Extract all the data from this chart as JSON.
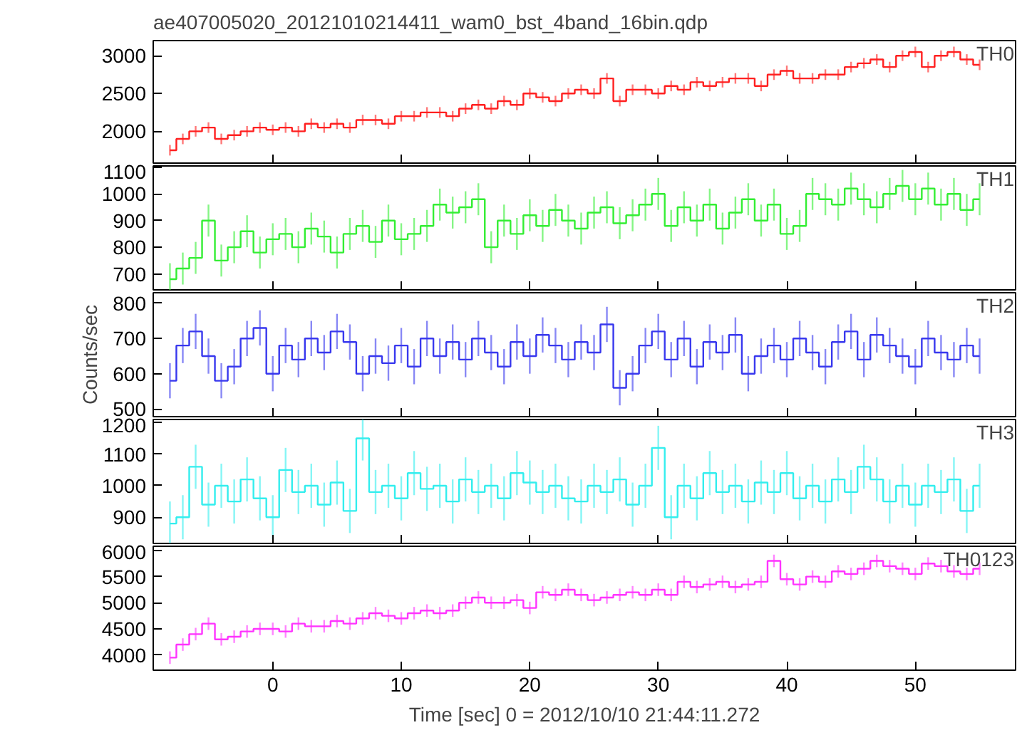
{
  "chart_data": [
    {
      "type": "step",
      "title": "ae407005020_20121010214411_wam0_bst_4band_16bin.qdp",
      "xlim": [
        -9.3,
        57.8
      ],
      "xticks": [
        0,
        10,
        20,
        30,
        40,
        50
      ],
      "ylim": [
        1580,
        3200
      ],
      "yticks": [
        2000,
        2500,
        3000
      ],
      "tick_labels": "y",
      "grid": false,
      "legend": false,
      "x": [
        -8,
        -7,
        -6,
        -5,
        -4,
        -3,
        -2,
        -1,
        0,
        1,
        2,
        3,
        4,
        5,
        6,
        7,
        8,
        9,
        10,
        11,
        12,
        13,
        14,
        15,
        16,
        17,
        18,
        19,
        20,
        21,
        22,
        23,
        24,
        25,
        26,
        27,
        28,
        29,
        30,
        31,
        32,
        33,
        34,
        35,
        36,
        37,
        38,
        39,
        40,
        41,
        42,
        43,
        44,
        45,
        46,
        47,
        48,
        49,
        50,
        51,
        52,
        53,
        54,
        55
      ],
      "series": [
        {
          "name": "TH0",
          "color": "#ff2020",
          "values": [
            1750,
            1900,
            2000,
            2050,
            1900,
            1950,
            2000,
            2050,
            2020,
            2050,
            2000,
            2100,
            2050,
            2100,
            2050,
            2150,
            2150,
            2100,
            2200,
            2200,
            2250,
            2250,
            2200,
            2300,
            2350,
            2300,
            2400,
            2350,
            2500,
            2450,
            2400,
            2500,
            2550,
            2500,
            2700,
            2400,
            2550,
            2550,
            2500,
            2600,
            2550,
            2650,
            2600,
            2650,
            2700,
            2700,
            2600,
            2750,
            2800,
            2700,
            2700,
            2750,
            2750,
            2850,
            2900,
            2950,
            2850,
            3000,
            3050,
            2850,
            3000,
            3050,
            2950,
            2880
          ],
          "errors": [
            70,
            70,
            70,
            70,
            70,
            70,
            70,
            70,
            70,
            70,
            70,
            70,
            70,
            70,
            70,
            70,
            70,
            70,
            70,
            70,
            70,
            70,
            70,
            70,
            70,
            70,
            70,
            70,
            70,
            70,
            70,
            70,
            70,
            70,
            70,
            70,
            70,
            70,
            70,
            70,
            70,
            70,
            70,
            70,
            70,
            70,
            70,
            70,
            70,
            70,
            70,
            70,
            70,
            70,
            70,
            70,
            70,
            70,
            70,
            70,
            70,
            70,
            70,
            70
          ]
        }
      ]
    },
    {
      "type": "step",
      "xlim": [
        -9.3,
        57.8
      ],
      "xticks": [
        0,
        10,
        20,
        30,
        40,
        50
      ],
      "ylim": [
        640,
        1105
      ],
      "yticks": [
        700,
        800,
        900,
        1000,
        1100
      ],
      "tick_labels": "y",
      "grid": false,
      "legend": false,
      "x": [
        -8,
        -7,
        -6,
        -5,
        -4,
        -3,
        -2,
        -1,
        0,
        1,
        2,
        3,
        4,
        5,
        6,
        7,
        8,
        9,
        10,
        11,
        12,
        13,
        14,
        15,
        16,
        17,
        18,
        19,
        20,
        21,
        22,
        23,
        24,
        25,
        26,
        27,
        28,
        29,
        30,
        31,
        32,
        33,
        34,
        35,
        36,
        37,
        38,
        39,
        40,
        41,
        42,
        43,
        44,
        45,
        46,
        47,
        48,
        49,
        50,
        51,
        52,
        53,
        54,
        55
      ],
      "series": [
        {
          "name": "TH1",
          "color": "#33ee33",
          "values": [
            680,
            720,
            760,
            900,
            750,
            800,
            860,
            780,
            830,
            850,
            800,
            870,
            840,
            780,
            850,
            880,
            820,
            900,
            830,
            850,
            880,
            960,
            930,
            950,
            980,
            800,
            900,
            850,
            920,
            880,
            940,
            900,
            870,
            930,
            950,
            890,
            920,
            960,
            1000,
            880,
            950,
            900,
            960,
            870,
            930,
            980,
            900,
            960,
            850,
            880,
            1000,
            980,
            960,
            1020,
            980,
            950,
            1000,
            1030,
            980,
            1020,
            960,
            1000,
            940,
            980
          ],
          "errors": [
            60,
            60,
            60,
            60,
            60,
            60,
            60,
            60,
            60,
            60,
            60,
            60,
            60,
            60,
            60,
            60,
            60,
            60,
            60,
            60,
            60,
            60,
            60,
            60,
            60,
            60,
            60,
            60,
            60,
            60,
            60,
            60,
            60,
            60,
            60,
            60,
            60,
            60,
            60,
            60,
            60,
            60,
            60,
            60,
            60,
            60,
            60,
            60,
            60,
            60,
            60,
            60,
            60,
            60,
            60,
            60,
            60,
            60,
            60,
            60,
            60,
            60,
            60,
            60
          ]
        }
      ]
    },
    {
      "type": "step",
      "ylabel": "Counts/sec",
      "xlim": [
        -9.3,
        57.8
      ],
      "xticks": [
        0,
        10,
        20,
        30,
        40,
        50
      ],
      "ylim": [
        478,
        830
      ],
      "yticks": [
        500,
        600,
        700,
        800
      ],
      "tick_labels": "y",
      "grid": false,
      "legend": false,
      "x": [
        -8,
        -7,
        -6,
        -5,
        -4,
        -3,
        -2,
        -1,
        0,
        1,
        2,
        3,
        4,
        5,
        6,
        7,
        8,
        9,
        10,
        11,
        12,
        13,
        14,
        15,
        16,
        17,
        18,
        19,
        20,
        21,
        22,
        23,
        24,
        25,
        26,
        27,
        28,
        29,
        30,
        31,
        32,
        33,
        34,
        35,
        36,
        37,
        38,
        39,
        40,
        41,
        42,
        43,
        44,
        45,
        46,
        47,
        48,
        49,
        50,
        51,
        52,
        53,
        54,
        55
      ],
      "series": [
        {
          "name": "TH2",
          "color": "#3838ee",
          "values": [
            580,
            680,
            720,
            650,
            580,
            620,
            700,
            730,
            600,
            680,
            640,
            700,
            660,
            720,
            690,
            600,
            650,
            630,
            680,
            620,
            700,
            650,
            690,
            640,
            700,
            660,
            620,
            690,
            650,
            710,
            680,
            640,
            690,
            660,
            740,
            560,
            600,
            680,
            720,
            640,
            700,
            620,
            690,
            660,
            710,
            600,
            650,
            680,
            640,
            700,
            660,
            620,
            690,
            720,
            640,
            710,
            680,
            650,
            620,
            700,
            660,
            640,
            680,
            650
          ],
          "errors": [
            50,
            50,
            50,
            50,
            50,
            50,
            50,
            50,
            50,
            50,
            50,
            50,
            50,
            50,
            50,
            50,
            50,
            50,
            50,
            50,
            50,
            50,
            50,
            50,
            50,
            50,
            50,
            50,
            50,
            50,
            50,
            50,
            50,
            50,
            50,
            50,
            50,
            50,
            50,
            50,
            50,
            50,
            50,
            50,
            50,
            50,
            50,
            50,
            50,
            50,
            50,
            50,
            50,
            50,
            50,
            50,
            50,
            50,
            50,
            50,
            50,
            50,
            50,
            50
          ]
        }
      ]
    },
    {
      "type": "step",
      "xlim": [
        -9.3,
        57.8
      ],
      "xticks": [
        0,
        10,
        20,
        30,
        40,
        50
      ],
      "ylim": [
        817,
        1210
      ],
      "yticks": [
        900,
        1000,
        1100,
        1200
      ],
      "tick_labels": "y",
      "grid": false,
      "legend": false,
      "x": [
        -8,
        -7,
        -6,
        -5,
        -4,
        -3,
        -2,
        -1,
        0,
        1,
        2,
        3,
        4,
        5,
        6,
        7,
        8,
        9,
        10,
        11,
        12,
        13,
        14,
        15,
        16,
        17,
        18,
        19,
        20,
        21,
        22,
        23,
        24,
        25,
        26,
        27,
        28,
        29,
        30,
        31,
        32,
        33,
        34,
        35,
        36,
        37,
        38,
        39,
        40,
        41,
        42,
        43,
        44,
        45,
        46,
        47,
        48,
        49,
        50,
        51,
        52,
        53,
        54,
        55
      ],
      "series": [
        {
          "name": "TH3",
          "color": "#33eeee",
          "values": [
            880,
            900,
            1060,
            940,
            1000,
            950,
            1020,
            960,
            900,
            1050,
            980,
            1000,
            940,
            1010,
            920,
            1150,
            980,
            1000,
            960,
            1040,
            990,
            1000,
            950,
            1020,
            980,
            1000,
            960,
            1040,
            1010,
            980,
            1000,
            960,
            950,
            1000,
            980,
            1020,
            940,
            1000,
            1120,
            900,
            1000,
            960,
            1040,
            980,
            1000,
            950,
            1010,
            980,
            1040,
            960,
            1000,
            950,
            1020,
            980,
            1060,
            1020,
            950,
            1000,
            940,
            1000,
            980,
            1020,
            920,
            1000
          ],
          "errors": [
            70,
            70,
            70,
            70,
            70,
            70,
            70,
            70,
            70,
            70,
            70,
            70,
            70,
            70,
            70,
            70,
            70,
            70,
            70,
            70,
            70,
            70,
            70,
            70,
            70,
            70,
            70,
            70,
            70,
            70,
            70,
            70,
            70,
            70,
            70,
            70,
            70,
            70,
            70,
            70,
            70,
            70,
            70,
            70,
            70,
            70,
            70,
            70,
            70,
            70,
            70,
            70,
            70,
            70,
            70,
            70,
            70,
            70,
            70,
            70,
            70,
            70,
            70,
            70
          ]
        }
      ]
    },
    {
      "type": "step",
      "xlabel": "Time [sec] 0 = 2012/10/10 21:44:11.272",
      "xlim": [
        -9.3,
        57.8
      ],
      "xticks": [
        0,
        10,
        20,
        30,
        40,
        50
      ],
      "ylim": [
        3710,
        6080
      ],
      "yticks": [
        4000,
        4500,
        5000,
        5500,
        6000
      ],
      "grid": false,
      "legend": false,
      "x": [
        -8,
        -7,
        -6,
        -5,
        -4,
        -3,
        -2,
        -1,
        0,
        1,
        2,
        3,
        4,
        5,
        6,
        7,
        8,
        9,
        10,
        11,
        12,
        13,
        14,
        15,
        16,
        17,
        18,
        19,
        20,
        21,
        22,
        23,
        24,
        25,
        26,
        27,
        28,
        29,
        30,
        31,
        32,
        33,
        34,
        35,
        36,
        37,
        38,
        39,
        40,
        41,
        42,
        43,
        44,
        45,
        46,
        47,
        48,
        49,
        50,
        51,
        52,
        53,
        54,
        55
      ],
      "series": [
        {
          "name": "TH0123",
          "color": "#ff33ff",
          "values": [
            3950,
            4200,
            4400,
            4600,
            4300,
            4350,
            4450,
            4500,
            4500,
            4450,
            4600,
            4550,
            4550,
            4650,
            4600,
            4700,
            4800,
            4750,
            4700,
            4800,
            4850,
            4800,
            4850,
            5000,
            5100,
            5000,
            5000,
            5050,
            4900,
            5200,
            5150,
            5250,
            5150,
            5050,
            5100,
            5150,
            5200,
            5150,
            5250,
            5150,
            5400,
            5300,
            5350,
            5400,
            5300,
            5350,
            5400,
            5800,
            5450,
            5350,
            5500,
            5400,
            5600,
            5550,
            5650,
            5800,
            5700,
            5650,
            5550,
            5750,
            5700,
            5600,
            5550,
            5650
          ],
          "errors": [
            120,
            120,
            120,
            120,
            120,
            120,
            120,
            120,
            120,
            120,
            120,
            120,
            120,
            120,
            120,
            120,
            120,
            120,
            120,
            120,
            120,
            120,
            120,
            120,
            120,
            120,
            120,
            120,
            120,
            120,
            120,
            120,
            120,
            120,
            120,
            120,
            120,
            120,
            120,
            120,
            120,
            120,
            120,
            120,
            120,
            120,
            120,
            120,
            120,
            120,
            120,
            120,
            120,
            120,
            120,
            120,
            120,
            120,
            120,
            120,
            120,
            120,
            120,
            120
          ]
        }
      ]
    }
  ]
}
